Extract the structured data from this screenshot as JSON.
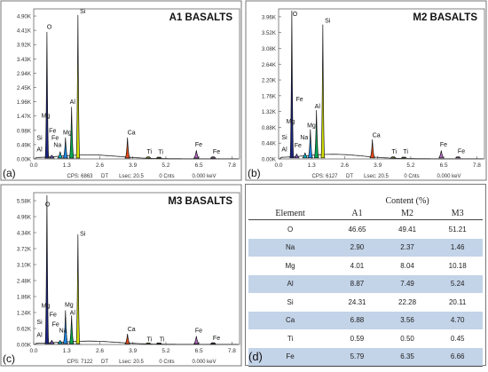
{
  "chart_data": [
    {
      "type": "line",
      "title": "A1 BASALTS",
      "panel_label": "(a)",
      "x_ticks": [
        "0.0",
        "1.3",
        "2.6",
        "3.9",
        "5.2",
        "6.5",
        "7.8"
      ],
      "y_ticks": [
        "0.00K",
        "0.49K",
        "0.98K",
        "1.47K",
        "1.96K",
        "2.45K",
        "2.94K",
        "3.43K",
        "3.92K",
        "4.41K",
        "4.90K"
      ],
      "ylim": [
        0,
        4900
      ],
      "xlim": [
        0,
        8.1
      ],
      "footer": {
        "cps": "CPS: 6863",
        "dt": "DT",
        "lsec": "Lsec: 20.5",
        "cnts": "0 Cnts",
        "kev": "0.000 keV"
      },
      "peaks": [
        {
          "el": "O",
          "x": 0.52,
          "y": 4150,
          "color": "#1a237e"
        },
        {
          "el": "Si",
          "x": 1.74,
          "y": 4700,
          "color": "#d4e000"
        },
        {
          "el": "Al",
          "x": 1.49,
          "y": 1700,
          "color": "#00a651"
        },
        {
          "el": "Mg",
          "x": 1.25,
          "y": 700,
          "color": "#1e88e5"
        },
        {
          "el": "Na",
          "x": 1.04,
          "y": 240,
          "color": "#00bcd4"
        },
        {
          "el": "Ca",
          "x": 3.69,
          "y": 700,
          "color": "#e64a19"
        },
        {
          "el": "Ti",
          "x": 4.51,
          "y": 60,
          "color": "#c0ca33"
        },
        {
          "el": "Ti",
          "x": 4.93,
          "y": 40,
          "color": "#c0ca33"
        },
        {
          "el": "Fe",
          "x": 6.4,
          "y": 280,
          "color": "#ba68c8"
        },
        {
          "el": "Fe",
          "x": 7.06,
          "y": 60,
          "color": "#ba68c8"
        },
        {
          "el": "Fe",
          "x": 0.71,
          "y": 120,
          "color": "#7e57c2"
        }
      ],
      "labels": [
        {
          "text": "O",
          "x": 0.52,
          "y": 4250
        },
        {
          "text": "Si",
          "x": 1.82,
          "y": 4750
        },
        {
          "text": "Al",
          "x": 1.42,
          "y": 1800
        },
        {
          "text": "Mg",
          "x": 0.3,
          "y": 1350
        },
        {
          "text": "Fe",
          "x": 0.6,
          "y": 850
        },
        {
          "text": "Fe",
          "x": 0.7,
          "y": 620
        },
        {
          "text": "Si",
          "x": 0.12,
          "y": 620
        },
        {
          "text": "Mg",
          "x": 1.15,
          "y": 800
        },
        {
          "text": "Na",
          "x": 0.78,
          "y": 390
        },
        {
          "text": "Al",
          "x": 0.12,
          "y": 240
        },
        {
          "text": "Ca",
          "x": 3.69,
          "y": 800
        },
        {
          "text": "Ti",
          "x": 4.45,
          "y": 180
        },
        {
          "text": "Ti",
          "x": 4.9,
          "y": 160
        },
        {
          "text": "Fe",
          "x": 6.35,
          "y": 400
        },
        {
          "text": "Fe",
          "x": 7.05,
          "y": 180
        }
      ]
    },
    {
      "type": "line",
      "title": "M2 BASALTS",
      "panel_label": "(b)",
      "x_ticks": [
        "0.0",
        "1.3",
        "2.6",
        "3.9",
        "5.2",
        "6.5",
        "7.8"
      ],
      "y_ticks": [
        "0.00K",
        "0.44K",
        "0.88K",
        "1.32K",
        "1.76K",
        "2.20K",
        "2.64K",
        "3.08K",
        "3.52K",
        "3.96K"
      ],
      "ylim": [
        0,
        4300
      ],
      "xlim": [
        0,
        8.1
      ],
      "footer": {
        "cps": "CPS: 6127",
        "dt": "DT",
        "lsec": "Lsec: 20.5",
        "cnts": "0 Cnts",
        "kev": "0.000 keV"
      },
      "peaks": [
        {
          "el": "O",
          "x": 0.52,
          "y": 4250,
          "color": "#1a237e"
        },
        {
          "el": "Si",
          "x": 1.74,
          "y": 3850,
          "color": "#d4e000"
        },
        {
          "el": "Al",
          "x": 1.49,
          "y": 1400,
          "color": "#00a651"
        },
        {
          "el": "Mg",
          "x": 1.25,
          "y": 850,
          "color": "#1e88e5"
        },
        {
          "el": "Na",
          "x": 1.04,
          "y": 180,
          "color": "#00bcd4"
        },
        {
          "el": "Ca",
          "x": 3.69,
          "y": 560,
          "color": "#e64a19"
        },
        {
          "el": "Ti",
          "x": 4.51,
          "y": 50,
          "color": "#c0ca33"
        },
        {
          "el": "Ti",
          "x": 4.93,
          "y": 30,
          "color": "#c0ca33"
        },
        {
          "el": "Fe",
          "x": 6.4,
          "y": 240,
          "color": "#ba68c8"
        },
        {
          "el": "Fe",
          "x": 7.06,
          "y": 50,
          "color": "#ba68c8"
        },
        {
          "el": "Fe",
          "x": 0.71,
          "y": 140,
          "color": "#7e57c2"
        }
      ],
      "labels": [
        {
          "text": "O",
          "x": 0.55,
          "y": 4100
        },
        {
          "text": "Si",
          "x": 1.82,
          "y": 3900
        },
        {
          "text": "Fe",
          "x": 0.68,
          "y": 1650
        },
        {
          "text": "Al",
          "x": 1.42,
          "y": 1450
        },
        {
          "text": "Mg",
          "x": 0.3,
          "y": 1020
        },
        {
          "text": "Mg",
          "x": 1.12,
          "y": 900
        },
        {
          "text": "Na",
          "x": 0.85,
          "y": 560
        },
        {
          "text": "Fe",
          "x": 0.62,
          "y": 330
        },
        {
          "text": "Si",
          "x": 0.12,
          "y": 560
        },
        {
          "text": "Al",
          "x": 0.12,
          "y": 220
        },
        {
          "text": "Ca",
          "x": 3.69,
          "y": 620
        },
        {
          "text": "Ti",
          "x": 4.45,
          "y": 150
        },
        {
          "text": "Ti",
          "x": 4.9,
          "y": 150
        },
        {
          "text": "Fe",
          "x": 6.35,
          "y": 350
        },
        {
          "text": "Fe",
          "x": 7.05,
          "y": 160
        }
      ]
    },
    {
      "type": "line",
      "title": "M3 BASALTS",
      "panel_label": "(c)",
      "x_ticks": [
        "0.0",
        "1.3",
        "2.6",
        "3.9",
        "5.2",
        "6.5",
        "7.8"
      ],
      "y_ticks": [
        "0.00K",
        "0.62K",
        "1.24K",
        "1.86K",
        "2.48K",
        "3.10K",
        "3.72K",
        "4.34K",
        "4.96K",
        "5.58K"
      ],
      "ylim": [
        0,
        6000
      ],
      "xlim": [
        0,
        8.1
      ],
      "footer": {
        "cps": "CPS: 7122",
        "dt": "DT",
        "lsec": "Lsec: 20.5",
        "cnts": "0 Cnts",
        "kev": "0.000 keV"
      },
      "peaks": [
        {
          "el": "O",
          "x": 0.52,
          "y": 5900,
          "color": "#1a237e"
        },
        {
          "el": "Si",
          "x": 1.74,
          "y": 4350,
          "color": "#d4e000"
        },
        {
          "el": "Al",
          "x": 1.49,
          "y": 1150,
          "color": "#00a651"
        },
        {
          "el": "Mg",
          "x": 1.25,
          "y": 1350,
          "color": "#1e88e5"
        },
        {
          "el": "Na",
          "x": 1.04,
          "y": 160,
          "color": "#00bcd4"
        },
        {
          "el": "Ca",
          "x": 3.69,
          "y": 420,
          "color": "#e64a19"
        },
        {
          "el": "Ti",
          "x": 4.51,
          "y": 40,
          "color": "#c0ca33"
        },
        {
          "el": "Ti",
          "x": 4.93,
          "y": 30,
          "color": "#c0ca33"
        },
        {
          "el": "Fe",
          "x": 6.4,
          "y": 330,
          "color": "#ba68c8"
        },
        {
          "el": "Fe",
          "x": 7.06,
          "y": 50,
          "color": "#ba68c8"
        },
        {
          "el": "Fe",
          "x": 0.71,
          "y": 160,
          "color": "#7e57c2"
        }
      ],
      "labels": [
        {
          "text": "O",
          "x": 0.45,
          "y": 5450
        },
        {
          "text": "Si",
          "x": 1.82,
          "y": 4300
        },
        {
          "text": "Mg",
          "x": 1.22,
          "y": 1500
        },
        {
          "text": "Al",
          "x": 1.42,
          "y": 1180
        },
        {
          "text": "Mg",
          "x": 0.3,
          "y": 1450
        },
        {
          "text": "Fe",
          "x": 0.62,
          "y": 1100
        },
        {
          "text": "Si",
          "x": 0.12,
          "y": 800
        },
        {
          "text": "Fe",
          "x": 0.72,
          "y": 720
        },
        {
          "text": "Na",
          "x": 1.0,
          "y": 480
        },
        {
          "text": "Al",
          "x": 0.12,
          "y": 300
        },
        {
          "text": "Ca",
          "x": 3.69,
          "y": 520
        },
        {
          "text": "Ti",
          "x": 4.45,
          "y": 120
        },
        {
          "text": "Ti",
          "x": 4.95,
          "y": 120
        },
        {
          "text": "Fe",
          "x": 6.35,
          "y": 470
        },
        {
          "text": "Fe",
          "x": 7.05,
          "y": 170
        }
      ]
    },
    {
      "type": "table",
      "panel_label": "(d)",
      "header_group": "Content (%)",
      "columns": [
        "Element",
        "A1",
        "M2",
        "M3"
      ],
      "rows": [
        [
          "O",
          "46.65",
          "49.41",
          "51.21"
        ],
        [
          "Na",
          "2.90",
          "2.37",
          "1.46"
        ],
        [
          "Mg",
          "4.01",
          "8.04",
          "10.18"
        ],
        [
          "Al",
          "8.87",
          "7.49",
          "5.24"
        ],
        [
          "Si",
          "24.31",
          "22.28",
          "20.11"
        ],
        [
          "Ca",
          "6.88",
          "3.56",
          "4.70"
        ],
        [
          "Ti",
          "0.59",
          "0.50",
          "0.45"
        ],
        [
          "Fe",
          "5.79",
          "6.35",
          "6.66"
        ]
      ],
      "colors": {
        "stripe": "#c3d3e8"
      }
    }
  ]
}
